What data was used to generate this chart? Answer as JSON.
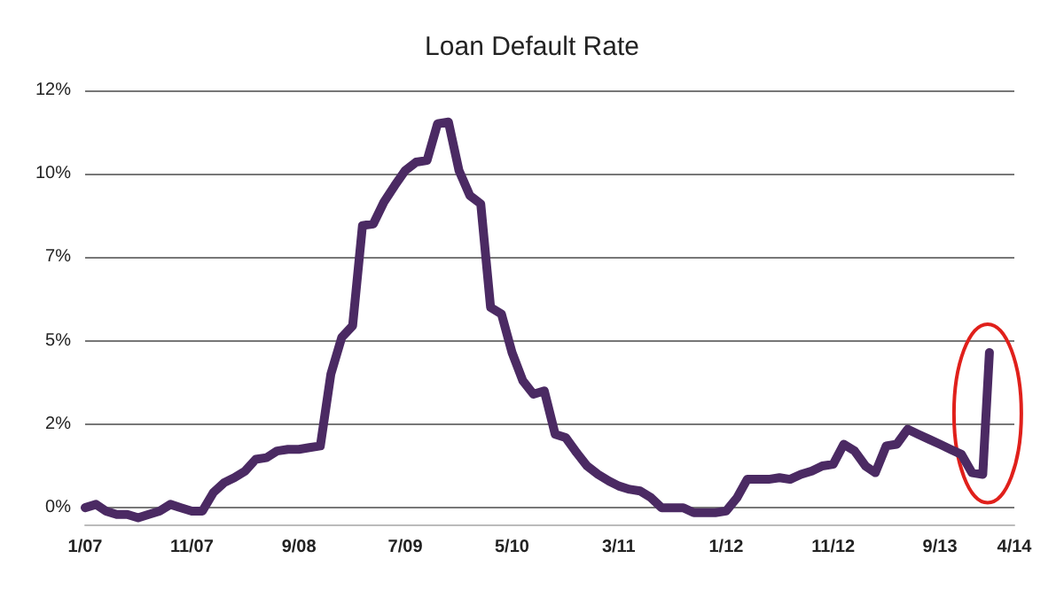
{
  "chart_data": {
    "type": "line",
    "title": "Loan Default Rate",
    "x": [
      "2007-01",
      "2007-02",
      "2007-03",
      "2007-04",
      "2007-05",
      "2007-06",
      "2007-07",
      "2007-08",
      "2007-09",
      "2007-10",
      "2007-11",
      "2007-12",
      "2008-01",
      "2008-02",
      "2008-03",
      "2008-04",
      "2008-05",
      "2008-06",
      "2008-07",
      "2008-08",
      "2008-09",
      "2008-10",
      "2008-11",
      "2008-12",
      "2009-01",
      "2009-02",
      "2009-03",
      "2009-04",
      "2009-05",
      "2009-06",
      "2009-07",
      "2009-08",
      "2009-09",
      "2009-10",
      "2009-11",
      "2009-12",
      "2010-01",
      "2010-02",
      "2010-03",
      "2010-04",
      "2010-05",
      "2010-06",
      "2010-07",
      "2010-08",
      "2010-09",
      "2010-10",
      "2010-11",
      "2010-12",
      "2011-01",
      "2011-02",
      "2011-03",
      "2011-04",
      "2011-05",
      "2011-06",
      "2011-07",
      "2011-08",
      "2011-09",
      "2011-10",
      "2011-11",
      "2011-12",
      "2012-01",
      "2012-02",
      "2012-03",
      "2012-04",
      "2012-05",
      "2012-06",
      "2012-07",
      "2012-08",
      "2012-09",
      "2012-10",
      "2012-11",
      "2012-12",
      "2013-01",
      "2013-02",
      "2013-03",
      "2013-04",
      "2013-05",
      "2013-06",
      "2013-07",
      "2013-08",
      "2013-09",
      "2013-10",
      "2013-11",
      "2013-12",
      "2014-01",
      "2014-01-20"
    ],
    "series": [
      {
        "color": "#4b2a63",
        "values": [
          0.0,
          0.1,
          -0.1,
          -0.2,
          -0.2,
          -0.3,
          -0.2,
          -0.1,
          0.1,
          0.0,
          -0.1,
          -0.1,
          0.45,
          0.75,
          0.9,
          1.1,
          1.45,
          1.5,
          1.7,
          1.75,
          1.75,
          1.8,
          1.85,
          4.0,
          5.1,
          5.45,
          8.45,
          8.5,
          9.15,
          9.65,
          10.1,
          10.35,
          10.4,
          11.5,
          11.55,
          10.1,
          9.35,
          9.1,
          6.0,
          5.8,
          4.65,
          3.8,
          3.4,
          3.5,
          2.2,
          2.1,
          1.65,
          1.25,
          1.0,
          0.8,
          0.65,
          0.55,
          0.5,
          0.3,
          0.0,
          0.0,
          0.0,
          -0.15,
          -0.15,
          -0.15,
          -0.1,
          0.3,
          0.85,
          0.85,
          0.85,
          0.9,
          0.85,
          1.0,
          1.1,
          1.25,
          1.3,
          1.9,
          1.7,
          1.25,
          1.05,
          1.85,
          1.9,
          2.35,
          2.2,
          2.05,
          1.9,
          1.75,
          1.6,
          1.05,
          1.0,
          4.65
        ]
      }
    ],
    "xlim": [
      "2007-01",
      "2014-04"
    ],
    "xticks": [
      {
        "value": "2007-01",
        "label": "1/07"
      },
      {
        "value": "2007-11",
        "label": "11/07"
      },
      {
        "value": "2008-09",
        "label": "9/08"
      },
      {
        "value": "2009-07",
        "label": "7/09"
      },
      {
        "value": "2010-05",
        "label": "5/10"
      },
      {
        "value": "2011-03",
        "label": "3/11"
      },
      {
        "value": "2012-01",
        "label": "1/12"
      },
      {
        "value": "2012-11",
        "label": "11/12"
      },
      {
        "value": "2013-09",
        "label": "9/13"
      },
      {
        "value": "2014-04",
        "label": "4/14"
      }
    ],
    "ylim": [
      -0.5,
      12.5
    ],
    "yticks": [
      {
        "value": 0,
        "label": "0%"
      },
      {
        "value": 2.5,
        "label": "2%"
      },
      {
        "value": 5,
        "label": "5%"
      },
      {
        "value": 7.5,
        "label": "7%"
      },
      {
        "value": 10,
        "label": "10%"
      },
      {
        "value": 12.5,
        "label": "12%"
      }
    ],
    "grid": "y",
    "marker": "none",
    "line_style": "solid"
  }
}
